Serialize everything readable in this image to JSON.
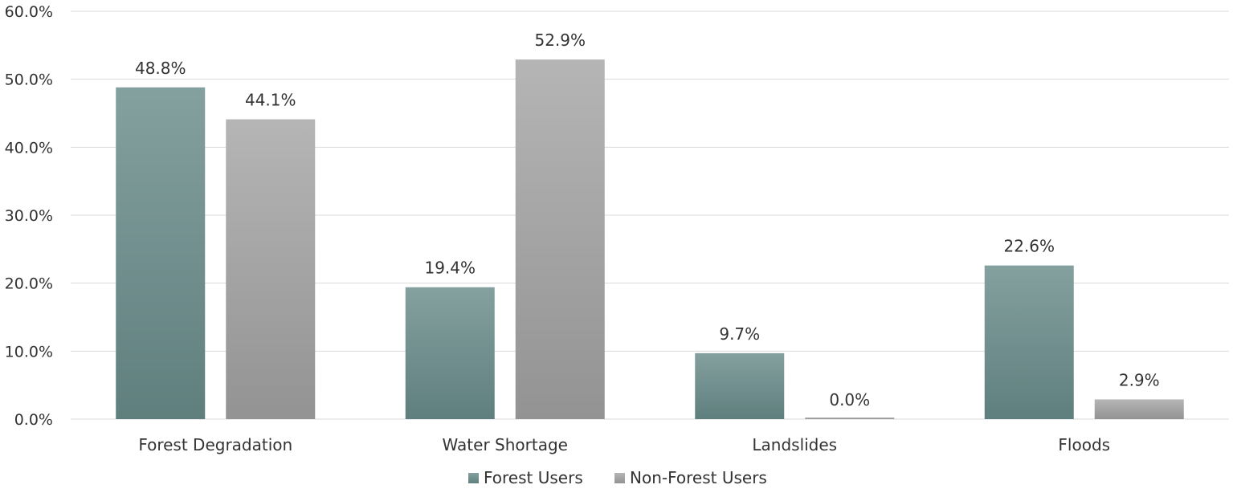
{
  "chart_data": {
    "type": "bar",
    "categories": [
      "Forest Degradation",
      "Water Shortage",
      "Landslides",
      "Floods"
    ],
    "series": [
      {
        "name": "Forest Users",
        "values": [
          48.8,
          19.4,
          9.7,
          22.6
        ],
        "labels": [
          "48.8%",
          "19.4%",
          "9.7%",
          "22.6%"
        ],
        "color_top": "#84a09f",
        "color_bottom": "#5f7f7e"
      },
      {
        "name": "Non-Forest Users",
        "values": [
          44.1,
          52.9,
          0.0,
          2.9
        ],
        "labels": [
          "44.1%",
          "52.9%",
          "0.0%",
          "2.9%"
        ],
        "color_top": "#b5b5b5",
        "color_bottom": "#939393"
      }
    ],
    "ylim": [
      0,
      60
    ],
    "yticks": [
      0,
      10,
      20,
      30,
      40,
      50,
      60
    ],
    "ytick_labels": [
      "0.0%",
      "10.0%",
      "20.0%",
      "30.0%",
      "40.0%",
      "50.0%",
      "60.0%"
    ],
    "grid": true,
    "legend_position": "bottom-center",
    "title": "",
    "xlabel": "",
    "ylabel": ""
  }
}
